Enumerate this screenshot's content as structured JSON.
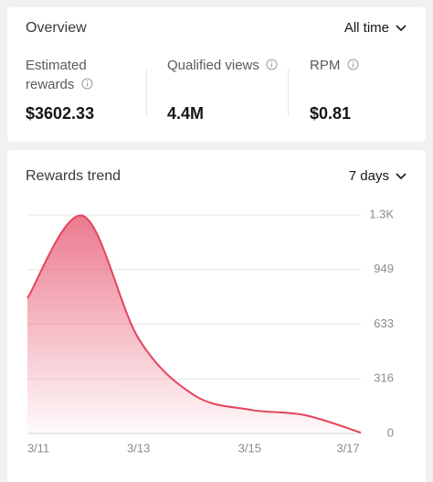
{
  "header": {
    "title": "Overview",
    "period": "All time"
  },
  "metrics": [
    {
      "label": "Estimated rewards",
      "value": "$3602.33"
    },
    {
      "label": "Qualified views",
      "value": "4.4M"
    },
    {
      "label": "RPM",
      "value": "$0.81"
    }
  ],
  "chart_data": {
    "type": "area",
    "title": "Rewards trend",
    "period": "7 days",
    "categories": [
      "3/11",
      null,
      "3/13",
      null,
      "3/15",
      null,
      "3/17"
    ],
    "values": [
      783,
      1260,
      550,
      222,
      138,
      106,
      5
    ],
    "color": "#e4435c",
    "ylim": [
      0,
      1265
    ],
    "yticks": [
      0,
      316,
      633,
      949,
      {
        "value": 1265,
        "label": "1.3K"
      }
    ],
    "grid": true
  }
}
